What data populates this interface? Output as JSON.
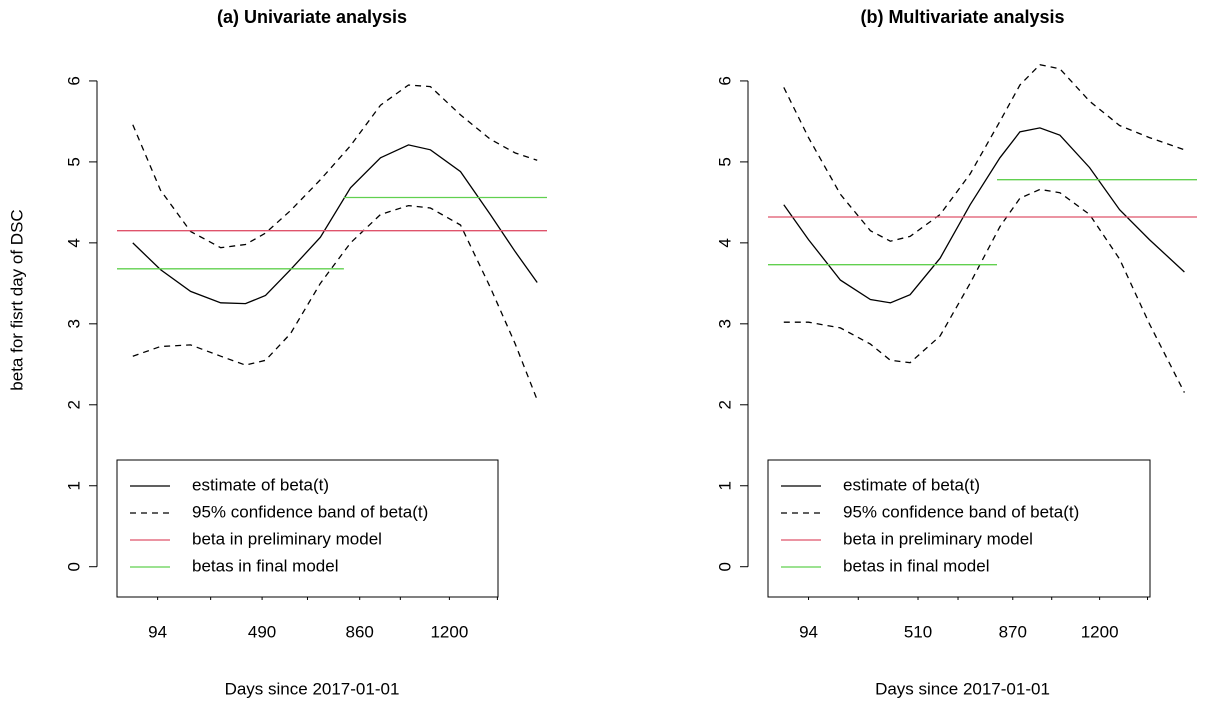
{
  "chart_data": [
    {
      "type": "line",
      "title": "(a) Univariate analysis",
      "xlabel": "Days since 2017-01-01",
      "ylabel": "beta for fisrt day of DSC",
      "xlim": [
        -60,
        1570
      ],
      "xticks": [
        94,
        490,
        860,
        1200
      ],
      "xminorticks": [
        295,
        662,
        1014,
        1382
      ],
      "ylim": [
        -0.3,
        6.45
      ],
      "yticks": [
        0,
        1,
        2,
        3,
        4,
        5,
        6
      ],
      "legend": "bottomleft",
      "series": [
        {
          "name": "estimate of beta(t)",
          "color": "#000000",
          "dash": false,
          "x": [
            0,
            105,
            219,
            333,
            427,
            503,
            598,
            711,
            825,
            939,
            1045,
            1128,
            1242,
            1355,
            1450,
            1533
          ],
          "values": [
            4.0,
            3.67,
            3.4,
            3.26,
            3.25,
            3.35,
            3.67,
            4.07,
            4.68,
            5.05,
            5.21,
            5.15,
            4.88,
            4.35,
            3.89,
            3.51
          ]
        },
        {
          "name": "95% confidence band of beta(t)",
          "color": "#000000",
          "dash": true,
          "x": [
            0,
            105,
            219,
            333,
            427,
            503,
            598,
            711,
            825,
            939,
            1045,
            1128,
            1242,
            1355,
            1450,
            1533
          ],
          "values": [
            5.46,
            4.65,
            4.14,
            3.94,
            3.98,
            4.12,
            4.4,
            4.78,
            5.2,
            5.7,
            5.95,
            5.93,
            5.58,
            5.28,
            5.11,
            5.02
          ],
          "lower": [
            2.6,
            2.72,
            2.74,
            2.6,
            2.49,
            2.55,
            2.88,
            3.5,
            4.0,
            4.35,
            4.46,
            4.43,
            4.22,
            3.45,
            2.75,
            2.06
          ]
        },
        {
          "name": "beta in preliminary model",
          "color": "#DF536B",
          "dash": false,
          "x": [
            -60,
            1570
          ],
          "values": [
            4.15,
            4.15
          ]
        },
        {
          "name": "betas in final model",
          "color": "#61D04F",
          "dash": false,
          "x": [
            -60,
            800,
            800,
            800,
            1570
          ],
          "values": [
            3.68,
            3.68,
            null,
            4.56,
            4.56
          ]
        }
      ]
    },
    {
      "type": "line",
      "title": "(b) Multivariate analysis",
      "xlabel": "Days since 2017-01-01",
      "xlim": [
        -60,
        1570
      ],
      "xticks": [
        94,
        510,
        870,
        1200
      ],
      "xminorticks": [
        283,
        662,
        1018,
        1382
      ],
      "ylim": [
        -0.3,
        6.45
      ],
      "yticks": [
        0,
        1,
        2,
        3,
        4,
        5,
        6
      ],
      "legend": "bottomleft",
      "series": [
        {
          "name": "estimate of beta(t)",
          "color": "#000000",
          "dash": false,
          "x": [
            0,
            94,
            215,
            329,
            405,
            480,
            594,
            708,
            821,
            897,
            973,
            1049,
            1162,
            1276,
            1389,
            1522
          ],
          "values": [
            4.47,
            4.04,
            3.54,
            3.3,
            3.26,
            3.36,
            3.81,
            4.47,
            5.05,
            5.37,
            5.42,
            5.33,
            4.93,
            4.41,
            4.04,
            3.64
          ]
        },
        {
          "name": "95% confidence band of beta(t)",
          "color": "#000000",
          "dash": true,
          "x": [
            0,
            94,
            215,
            329,
            405,
            480,
            594,
            708,
            821,
            897,
            973,
            1049,
            1162,
            1276,
            1389,
            1522
          ],
          "values": [
            5.92,
            5.3,
            4.6,
            4.15,
            4.02,
            4.08,
            4.35,
            4.85,
            5.5,
            5.95,
            6.2,
            6.15,
            5.75,
            5.45,
            5.3,
            5.15
          ],
          "lower": [
            3.02,
            3.02,
            2.95,
            2.75,
            2.55,
            2.52,
            2.85,
            3.5,
            4.2,
            4.55,
            4.66,
            4.62,
            4.35,
            3.8,
            3.0,
            2.15
          ]
        },
        {
          "name": "beta in preliminary model",
          "color": "#DF536B",
          "dash": false,
          "x": [
            -60,
            1570
          ],
          "values": [
            4.32,
            4.32
          ]
        },
        {
          "name": "betas in final model",
          "color": "#61D04F",
          "dash": false,
          "x": [
            -60,
            810,
            810,
            810,
            1570
          ],
          "values": [
            3.73,
            3.73,
            null,
            4.78,
            4.78
          ]
        }
      ]
    }
  ]
}
